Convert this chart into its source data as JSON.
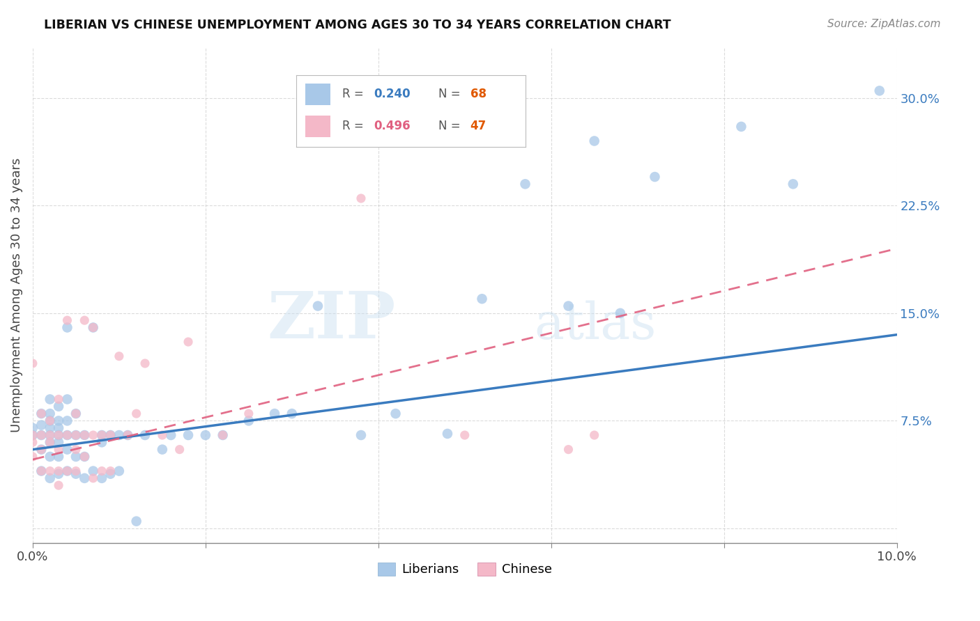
{
  "title": "LIBERIAN VS CHINESE UNEMPLOYMENT AMONG AGES 30 TO 34 YEARS CORRELATION CHART",
  "source": "Source: ZipAtlas.com",
  "ylabel": "Unemployment Among Ages 30 to 34 years",
  "xlim": [
    0.0,
    0.1
  ],
  "ylim": [
    -0.01,
    0.335
  ],
  "xticks": [
    0.0,
    0.02,
    0.04,
    0.06,
    0.08,
    0.1
  ],
  "xtick_labels_show": [
    "0.0%",
    "",
    "",
    "",
    "",
    "10.0%"
  ],
  "yticks": [
    0.0,
    0.075,
    0.15,
    0.225,
    0.3
  ],
  "ytick_labels": [
    "",
    "7.5%",
    "15.0%",
    "22.5%",
    "30.0%"
  ],
  "liberian_R": "0.240",
  "liberian_N": "68",
  "chinese_R": "0.496",
  "chinese_N": "47",
  "liberian_color": "#a8c8e8",
  "chinese_color": "#f4b8c8",
  "liberian_line_color": "#3a7bbf",
  "chinese_line_color": "#e06080",
  "background_color": "#ffffff",
  "grid_color": "#cccccc",
  "N_color": "#e05800",
  "liberian_x": [
    0.0,
    0.0,
    0.001,
    0.001,
    0.001,
    0.001,
    0.001,
    0.002,
    0.002,
    0.002,
    0.002,
    0.002,
    0.002,
    0.002,
    0.002,
    0.003,
    0.003,
    0.003,
    0.003,
    0.003,
    0.003,
    0.003,
    0.004,
    0.004,
    0.004,
    0.004,
    0.004,
    0.004,
    0.005,
    0.005,
    0.005,
    0.005,
    0.006,
    0.006,
    0.006,
    0.007,
    0.007,
    0.008,
    0.008,
    0.008,
    0.009,
    0.009,
    0.01,
    0.01,
    0.011,
    0.012,
    0.013,
    0.015,
    0.016,
    0.018,
    0.02,
    0.022,
    0.025,
    0.028,
    0.03,
    0.033,
    0.038,
    0.042,
    0.048,
    0.052,
    0.057,
    0.062,
    0.065,
    0.068,
    0.072,
    0.082,
    0.088,
    0.098
  ],
  "liberian_y": [
    0.065,
    0.07,
    0.04,
    0.055,
    0.065,
    0.072,
    0.08,
    0.035,
    0.05,
    0.06,
    0.065,
    0.07,
    0.075,
    0.08,
    0.09,
    0.038,
    0.05,
    0.06,
    0.065,
    0.07,
    0.075,
    0.085,
    0.04,
    0.055,
    0.065,
    0.075,
    0.09,
    0.14,
    0.038,
    0.05,
    0.065,
    0.08,
    0.035,
    0.05,
    0.065,
    0.04,
    0.14,
    0.035,
    0.06,
    0.065,
    0.038,
    0.065,
    0.04,
    0.065,
    0.065,
    0.005,
    0.065,
    0.055,
    0.065,
    0.065,
    0.065,
    0.065,
    0.075,
    0.08,
    0.08,
    0.155,
    0.065,
    0.08,
    0.066,
    0.16,
    0.24,
    0.155,
    0.27,
    0.15,
    0.245,
    0.28,
    0.24,
    0.305
  ],
  "chinese_x": [
    0.0,
    0.0,
    0.0,
    0.0,
    0.001,
    0.001,
    0.001,
    0.001,
    0.002,
    0.002,
    0.002,
    0.002,
    0.003,
    0.003,
    0.003,
    0.003,
    0.003,
    0.004,
    0.004,
    0.004,
    0.005,
    0.005,
    0.005,
    0.005,
    0.006,
    0.006,
    0.006,
    0.007,
    0.007,
    0.007,
    0.008,
    0.008,
    0.009,
    0.009,
    0.01,
    0.011,
    0.012,
    0.013,
    0.015,
    0.017,
    0.018,
    0.022,
    0.025,
    0.038,
    0.05,
    0.062,
    0.065
  ],
  "chinese_y": [
    0.05,
    0.06,
    0.065,
    0.115,
    0.04,
    0.055,
    0.065,
    0.08,
    0.04,
    0.06,
    0.065,
    0.075,
    0.03,
    0.04,
    0.055,
    0.065,
    0.09,
    0.04,
    0.065,
    0.145,
    0.04,
    0.055,
    0.065,
    0.08,
    0.05,
    0.065,
    0.145,
    0.035,
    0.065,
    0.14,
    0.04,
    0.065,
    0.04,
    0.065,
    0.12,
    0.065,
    0.08,
    0.115,
    0.065,
    0.055,
    0.13,
    0.065,
    0.08,
    0.23,
    0.065,
    0.055,
    0.065
  ],
  "liberian_line_x0": 0.0,
  "liberian_line_x1": 0.1,
  "liberian_line_y0": 0.055,
  "liberian_line_y1": 0.135,
  "chinese_line_x0": 0.0,
  "chinese_line_x1": 0.1,
  "chinese_line_y0": 0.048,
  "chinese_line_y1": 0.195
}
